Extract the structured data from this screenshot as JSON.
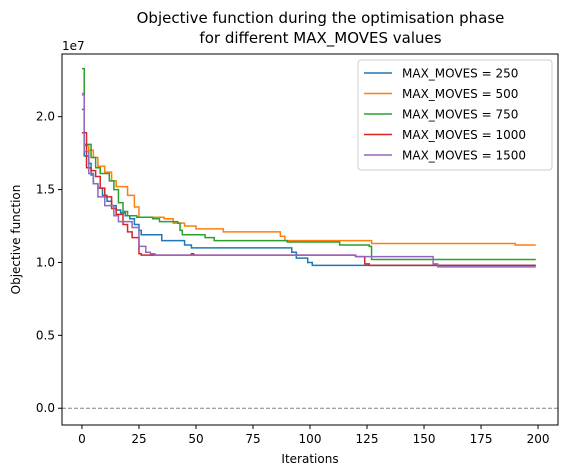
{
  "chart_data": {
    "type": "line",
    "title": "Objective function during the optimisation phase",
    "subtitle": "for different MAX_MOVES values",
    "xlabel": "Iterations",
    "ylabel": "Objective function",
    "y_exponent_label": "1e7",
    "xlim": [
      -8.75,
      208.75
    ],
    "ylim": [
      -1150000,
      24300000
    ],
    "x_ticks": [
      0,
      25,
      50,
      75,
      100,
      125,
      150,
      175,
      200
    ],
    "x_tick_labels": [
      "0",
      "25",
      "50",
      "75",
      "100",
      "125",
      "150",
      "175",
      "200"
    ],
    "y_ticks": [
      0,
      5000000,
      10000000,
      15000000,
      20000000
    ],
    "y_tick_labels": [
      "0.0",
      "0.5",
      "1.0",
      "1.5",
      "2.0"
    ],
    "reference_line": {
      "y": 0,
      "style": "dashed",
      "color": "#808080"
    },
    "grid": false,
    "legend_position": "top-right",
    "series": [
      {
        "name": "MAX_MOVES = 250",
        "color": "#1f77b4",
        "points": [
          [
            0,
            20500000
          ],
          [
            1,
            17300000
          ],
          [
            3,
            16800000
          ],
          [
            4,
            16000000
          ],
          [
            5,
            15400000
          ],
          [
            7,
            15100000
          ],
          [
            9,
            14600000
          ],
          [
            11,
            14200000
          ],
          [
            13,
            13900000
          ],
          [
            15,
            13600000
          ],
          [
            17,
            13400000
          ],
          [
            19,
            13200000
          ],
          [
            21,
            13000000
          ],
          [
            23,
            12600000
          ],
          [
            25,
            12200000
          ],
          [
            26,
            11900000
          ],
          [
            35,
            11500000
          ],
          [
            45,
            11200000
          ],
          [
            48,
            11000000
          ],
          [
            92,
            10700000
          ],
          [
            94,
            10300000
          ],
          [
            99,
            10000000
          ],
          [
            101,
            9800000
          ],
          [
            199,
            9800000
          ]
        ]
      },
      {
        "name": "MAX_MOVES = 500",
        "color": "#ff7f0e",
        "points": [
          [
            0,
            21600000
          ],
          [
            1,
            18000000
          ],
          [
            3,
            17700000
          ],
          [
            5,
            17200000
          ],
          [
            7,
            16600000
          ],
          [
            10,
            16200000
          ],
          [
            13,
            15600000
          ],
          [
            15,
            15200000
          ],
          [
            20,
            14600000
          ],
          [
            23,
            13800000
          ],
          [
            25,
            13100000
          ],
          [
            36,
            13000000
          ],
          [
            40,
            12700000
          ],
          [
            45,
            12500000
          ],
          [
            50,
            12300000
          ],
          [
            62,
            12100000
          ],
          [
            87,
            11800000
          ],
          [
            89,
            11500000
          ],
          [
            127,
            11300000
          ],
          [
            190,
            11200000
          ],
          [
            199,
            11200000
          ]
        ]
      },
      {
        "name": "MAX_MOVES = 750",
        "color": "#2ca02c",
        "points": [
          [
            0,
            23300000
          ],
          [
            1,
            18100000
          ],
          [
            4,
            17200000
          ],
          [
            6,
            16500000
          ],
          [
            8,
            16100000
          ],
          [
            12,
            15600000
          ],
          [
            14,
            15000000
          ],
          [
            16,
            14100000
          ],
          [
            18,
            13500000
          ],
          [
            20,
            13200000
          ],
          [
            24,
            13100000
          ],
          [
            31,
            13000000
          ],
          [
            34,
            12800000
          ],
          [
            42,
            12700000
          ],
          [
            43,
            12200000
          ],
          [
            44,
            11900000
          ],
          [
            54,
            11700000
          ],
          [
            58,
            11500000
          ],
          [
            90,
            11400000
          ],
          [
            113,
            11200000
          ],
          [
            126,
            11100000
          ],
          [
            127,
            10200000
          ],
          [
            199,
            10200000
          ]
        ]
      },
      {
        "name": "MAX_MOVES = 1000",
        "color": "#d62728",
        "points": [
          [
            0,
            18900000
          ],
          [
            2,
            16500000
          ],
          [
            4,
            16300000
          ],
          [
            6,
            15900000
          ],
          [
            8,
            15100000
          ],
          [
            10,
            14500000
          ],
          [
            13,
            13700000
          ],
          [
            15,
            13300000
          ],
          [
            18,
            12600000
          ],
          [
            20,
            12100000
          ],
          [
            22,
            11700000
          ],
          [
            25,
            10600000
          ],
          [
            26,
            10500000
          ],
          [
            48,
            10600000
          ],
          [
            49,
            10500000
          ],
          [
            120,
            10400000
          ],
          [
            124,
            9900000
          ],
          [
            126,
            9800000
          ],
          [
            199,
            9800000
          ]
        ]
      },
      {
        "name": "MAX_MOVES = 1500",
        "color": "#9467bd",
        "points": [
          [
            0,
            21500000
          ],
          [
            1,
            17600000
          ],
          [
            3,
            16100000
          ],
          [
            5,
            15400000
          ],
          [
            7,
            14500000
          ],
          [
            10,
            13900000
          ],
          [
            14,
            13200000
          ],
          [
            16,
            12800000
          ],
          [
            22,
            12400000
          ],
          [
            25,
            11100000
          ],
          [
            28,
            10700000
          ],
          [
            30,
            10600000
          ],
          [
            32,
            10500000
          ],
          [
            120,
            10400000
          ],
          [
            154,
            9900000
          ],
          [
            156,
            9700000
          ],
          [
            199,
            9700000
          ]
        ]
      }
    ]
  }
}
